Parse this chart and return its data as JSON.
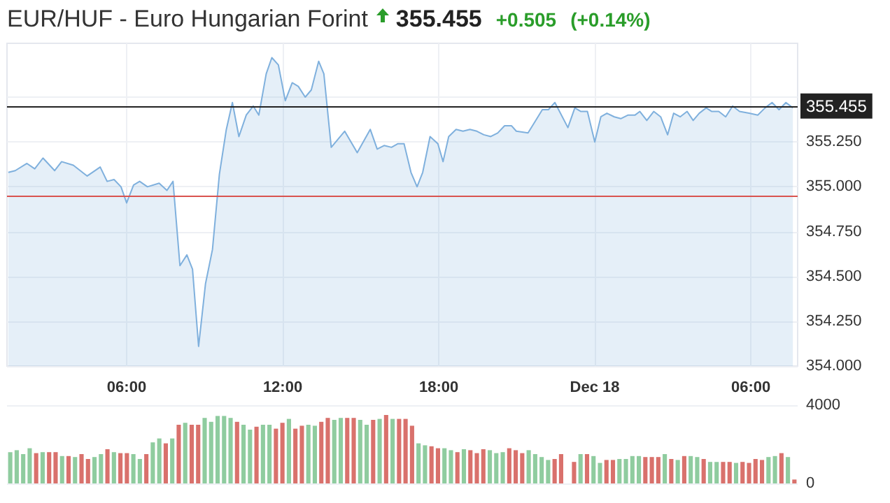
{
  "chart_data": [
    {
      "type": "area",
      "title": "EUR/HUF - Euro Hungarian Forint",
      "annotations": [
        "355.455",
        "+0.505",
        "(+0.14%)"
      ],
      "x": [
        "--12-17T01:27",
        "--12-17T01:43",
        "--12-17T02:10",
        "--12-17T02:28",
        "--12-17T02:47",
        "--12-17T03:14",
        "--12-17T03:30",
        "--12-17T03:57",
        "--12-17T04:29",
        "--12-17T04:59",
        "--12-17T05:15",
        "--12-17T05:31",
        "--12-17T05:47",
        "--12-17T06:00",
        "--12-17T06:16",
        "--12-17T06:30",
        "--12-17T06:48",
        "--12-17T07:15",
        "--12-17T07:33",
        "--12-17T07:47",
        "--12-17T08:03",
        "--12-17T08:19",
        "--12-17T08:32",
        "--12-17T08:46",
        "--12-17T09:02",
        "--12-17T09:18",
        "--12-17T09:34",
        "--12-17T09:50",
        "--12-17T10:04",
        "--12-17T10:19",
        "--12-17T10:36",
        "--12-17T10:52",
        "--12-17T11:05",
        "--12-17T11:22",
        "--12-17T11:35",
        "--12-17T11:50",
        "--12-17T12:06",
        "--12-17T12:22",
        "--12-17T12:36",
        "--12-17T12:52",
        "--12-17T13:06",
        "--12-17T13:23",
        "--12-17T13:35",
        "--12-17T13:52",
        "--12-17T14:23",
        "--12-17T14:52",
        "--12-17T15:22",
        "--12-17T15:38",
        "--12-17T15:54",
        "--12-17T16:11",
        "--12-17T16:26",
        "--12-17T16:40",
        "--12-17T16:56",
        "--12-17T17:10",
        "--12-17T17:23",
        "--12-17T17:40",
        "--12-17T17:58",
        "--12-17T18:10",
        "--12-17T18:23",
        "--12-17T18:40",
        "--12-17T18:56",
        "--12-17T19:12",
        "--12-17T19:28",
        "--12-17T19:44",
        "--12-17T20:00",
        "--12-17T20:16",
        "--12-17T20:32",
        "--12-17T20:48",
        "--12-17T20:59",
        "--12-17T21:26",
        "--12-17T21:59",
        "--12-17T22:13",
        "--12-17T22:28",
        "--12-17T22:58",
        "--12-17T23:14",
        "--12-17T23:28",
        "--12-17T23:43",
        "--12-18T00:00",
        "--12-18T00:14",
        "--12-18T00:28",
        "--12-18T00:45",
        "--12-18T01:00",
        "--12-18T01:17",
        "--12-18T01:33",
        "--12-18T01:44",
        "--12-18T02:00",
        "--12-18T02:16",
        "--12-18T02:32",
        "--12-18T02:48",
        "--12-18T03:02",
        "--12-18T03:17",
        "--12-18T03:33",
        "--12-18T03:47",
        "--12-18T04:01",
        "--12-18T04:17",
        "--12-18T04:30",
        "--12-18T04:46",
        "--12-18T05:02",
        "--12-18T05:18",
        "--12-18T05:34",
        "--12-18T05:56",
        "--12-18T06:16",
        "--12-18T06:33",
        "--12-18T06:49",
        "--12-18T07:05",
        "--12-18T07:21",
        "--12-18T07:37"
      ],
      "series": [
        {
          "color": "#7fb0dd",
          "values": [
            355.08,
            355.09,
            355.13,
            355.1,
            355.16,
            355.09,
            355.14,
            355.12,
            355.06,
            355.11,
            355.03,
            355.04,
            355.0,
            354.91,
            355.01,
            355.03,
            355.0,
            355.02,
            354.98,
            355.03,
            354.56,
            354.62,
            354.54,
            354.11,
            354.46,
            354.65,
            355.07,
            355.32,
            355.47,
            355.28,
            355.4,
            355.45,
            355.4,
            355.63,
            355.72,
            355.68,
            355.48,
            355.58,
            355.56,
            355.5,
            355.54,
            355.7,
            355.63,
            355.22,
            355.31,
            355.19,
            355.32,
            355.21,
            355.23,
            355.22,
            355.24,
            355.24,
            355.08,
            355.0,
            355.08,
            355.28,
            355.24,
            355.14,
            355.28,
            355.32,
            355.31,
            355.32,
            355.31,
            355.29,
            355.28,
            355.3,
            355.34,
            355.34,
            355.31,
            355.3,
            355.43,
            355.43,
            355.47,
            355.33,
            355.44,
            355.42,
            355.42,
            355.25,
            355.39,
            355.41,
            355.39,
            355.38,
            355.4,
            355.4,
            355.42,
            355.37,
            355.42,
            355.39,
            355.29,
            355.41,
            355.39,
            355.42,
            355.37,
            355.41,
            355.44,
            355.42,
            355.42,
            355.39,
            355.45,
            355.42,
            355.41,
            355.4,
            355.44,
            355.47,
            355.43,
            355.47,
            355.44
          ]
        }
      ],
      "xlim": [
        "--12-17T01:24",
        "--12-18T07:48"
      ],
      "xticks": [
        {
          "value": "--12-17T06:00",
          "label": "06:00"
        },
        {
          "value": "--12-17T12:00",
          "label": "12:00"
        },
        {
          "value": "--12-17T18:00",
          "label": "18:00"
        },
        {
          "value": "--12-18T00:00",
          "label": "Dec 18"
        },
        {
          "value": "--12-18T06:00",
          "label": "06:00"
        }
      ],
      "ylim": [
        354,
        355.8
      ],
      "yticks": [
        {
          "value": 354,
          "label": "354.000"
        },
        {
          "value": 354.25,
          "label": "354.250"
        },
        {
          "value": 354.5,
          "label": "354.500"
        },
        {
          "value": 354.75,
          "label": "354.750"
        },
        {
          "value": 355,
          "label": "355.000"
        },
        {
          "value": 355.25,
          "label": "355.250"
        },
        {
          "value": 355.5,
          "label": null
        }
      ],
      "ref_lines": [
        {
          "axis": "y",
          "value": 355.455,
          "label": "355.455",
          "color": "#222222"
        },
        {
          "axis": "y",
          "value": 354.95,
          "color": "#d9534f"
        }
      ],
      "grid": true
    },
    {
      "type": "bar",
      "categories": [
        null,
        null,
        null,
        null,
        null,
        null,
        null,
        null,
        null,
        null,
        null,
        null,
        null,
        null,
        null,
        null,
        null,
        null,
        null,
        null,
        null,
        null,
        null,
        null,
        null,
        null,
        null,
        null,
        null,
        null,
        null,
        null,
        null,
        null,
        null,
        null,
        null,
        null,
        null,
        null,
        null,
        null,
        null,
        null,
        null,
        null,
        null,
        null,
        null,
        null,
        null,
        null,
        null,
        null,
        null,
        null,
        null,
        null,
        null,
        null,
        null,
        null,
        null,
        null,
        null,
        null,
        null,
        null,
        null,
        null,
        null,
        null,
        null,
        null,
        null,
        null,
        null,
        null,
        null,
        null,
        null,
        null,
        null,
        null,
        null,
        null,
        null,
        null,
        null,
        null,
        null,
        null,
        null,
        null,
        null,
        null,
        null,
        null,
        null,
        null,
        null,
        null,
        null,
        null,
        null,
        null,
        null,
        null,
        null,
        null,
        null,
        null,
        null,
        null,
        null,
        null,
        null,
        null,
        null,
        null,
        null,
        null
      ],
      "values": [
        1600,
        1700,
        1500,
        1800,
        1550,
        1600,
        1600,
        1600,
        1400,
        1400,
        1350,
        1500,
        1250,
        1350,
        1500,
        1750,
        1600,
        1550,
        1550,
        1500,
        1250,
        1500,
        2100,
        2300,
        2050,
        2300,
        3000,
        3100,
        3000,
        3000,
        3350,
        3150,
        3450,
        3450,
        3350,
        3150,
        3000,
        2750,
        2900,
        3000,
        3000,
        2800,
        3100,
        3300,
        2800,
        2950,
        3000,
        2950,
        3150,
        3350,
        3250,
        3350,
        3350,
        3350,
        3250,
        3000,
        3250,
        3300,
        3500,
        3300,
        3300,
        3300,
        2950,
        2050,
        1950,
        1900,
        1800,
        1800,
        1700,
        1600,
        1750,
        1700,
        1550,
        1750,
        1700,
        1550,
        1600,
        1800,
        1700,
        1550,
        1700,
        1500,
        1350,
        1200,
        1250,
        1500,
        null,
        1100,
        1500,
        1500,
        1400,
        1050,
        1200,
        1200,
        1250,
        1250,
        1400,
        1400,
        1350,
        1350,
        1350,
        1500,
        1250,
        1200,
        1400,
        1400,
        1350,
        1250,
        1100,
        1100,
        1100,
        1100,
        1050,
        1100,
        1050,
        1250,
        1200,
        1350,
        1400,
        1550,
        1350,
        200
      ],
      "colors": [
        "#8fcc9f",
        "#8fcc9f",
        "#8fcc9f",
        "#8fcc9f",
        "#d9716c",
        "#8fcc9f",
        "#d9716c",
        "#d9716c",
        "#8fcc9f",
        "#d9716c",
        "#8fcc9f",
        "#d9716c",
        "#d9716c",
        "#8fcc9f",
        "#8fcc9f",
        "#d9716c",
        "#8fcc9f",
        "#d9716c",
        "#d9716c",
        "#8fcc9f",
        "#8fcc9f",
        "#d9716c",
        "#8fcc9f",
        "#8fcc9f",
        "#d9716c",
        "#8fcc9f",
        "#d9716c",
        "#8fcc9f",
        "#d9716c",
        "#d9716c",
        "#8fcc9f",
        "#8fcc9f",
        "#8fcc9f",
        "#8fcc9f",
        "#8fcc9f",
        "#d9716c",
        "#8fcc9f",
        "#8fcc9f",
        "#d9716c",
        "#8fcc9f",
        "#8fcc9f",
        "#d9716c",
        "#d9716c",
        "#8fcc9f",
        "#d9716c",
        "#d9716c",
        "#8fcc9f",
        "#8fcc9f",
        "#d9716c",
        "#d9716c",
        "#8fcc9f",
        "#8fcc9f",
        "#d9716c",
        "#d9716c",
        "#8fcc9f",
        "#8fcc9f",
        "#d9716c",
        "#8fcc9f",
        "#d9716c",
        "#8fcc9f",
        "#d9716c",
        "#d9716c",
        "#d9716c",
        "#8fcc9f",
        "#8fcc9f",
        "#d9716c",
        "#d9716c",
        "#8fcc9f",
        "#8fcc9f",
        "#d9716c",
        "#8fcc9f",
        "#d9716c",
        "#d9716c",
        "#d9716c",
        "#8fcc9f",
        "#8fcc9f",
        "#8fcc9f",
        "#d9716c",
        "#d9716c",
        "#d9716c",
        "#8fcc9f",
        "#8fcc9f",
        "#8fcc9f",
        "#8fcc9f",
        "#d9716c",
        "#d9716c",
        null,
        "#d9716c",
        "#8fcc9f",
        "#d9716c",
        "#8fcc9f",
        "#8fcc9f",
        "#d9716c",
        "#d9716c",
        "#8fcc9f",
        "#8fcc9f",
        "#8fcc9f",
        "#8fcc9f",
        "#d9716c",
        "#d9716c",
        "#d9716c",
        "#8fcc9f",
        "#d9716c",
        "#8fcc9f",
        "#d9716c",
        "#8fcc9f",
        "#8fcc9f",
        "#d9716c",
        "#8fcc9f",
        "#8fcc9f",
        "#d9716c",
        "#d9716c",
        "#8fcc9f",
        "#d9716c",
        "#d9716c",
        "#d9716c",
        "#d9716c",
        "#8fcc9f",
        "#8fcc9f",
        "#d9716c",
        "#8fcc9f",
        "#d9716c"
      ],
      "ylim": [
        0,
        4000
      ],
      "yticks": [
        0,
        4000
      ],
      "tick_labels": "y",
      "grid": "y"
    }
  ]
}
